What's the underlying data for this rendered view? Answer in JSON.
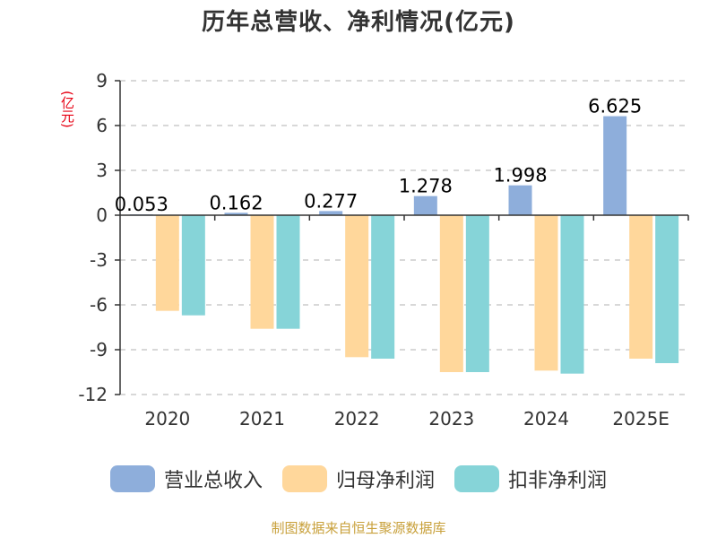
{
  "chart_data": {
    "type": "bar",
    "title": "历年总营收、净利情况(亿元)",
    "ylabel": "(亿元)",
    "categories": [
      "2020",
      "2021",
      "2022",
      "2023",
      "2024",
      "2025E"
    ],
    "ylim": [
      -12,
      9
    ],
    "yticks": [
      9,
      6,
      3,
      0,
      -3,
      -6,
      -9,
      -12
    ],
    "grid": true,
    "legend_position": "bottom",
    "series": [
      {
        "name": "营业总收入",
        "color": "#8eaedb",
        "values": [
          0.053,
          0.162,
          0.277,
          1.278,
          1.998,
          6.625
        ],
        "labels": [
          "0.053",
          "0.162",
          "0.277",
          "1.278",
          "1.998",
          "6.625"
        ]
      },
      {
        "name": "归母净利润",
        "color": "#ffd79b",
        "values": [
          -6.4,
          -7.6,
          -9.5,
          -10.5,
          -10.4,
          -9.6
        ]
      },
      {
        "name": "扣非净利润",
        "color": "#86d4d8",
        "values": [
          -6.7,
          -7.6,
          -9.6,
          -10.5,
          -10.6,
          -9.9
        ]
      }
    ]
  },
  "source_note": "制图数据来自恒生聚源数据库"
}
